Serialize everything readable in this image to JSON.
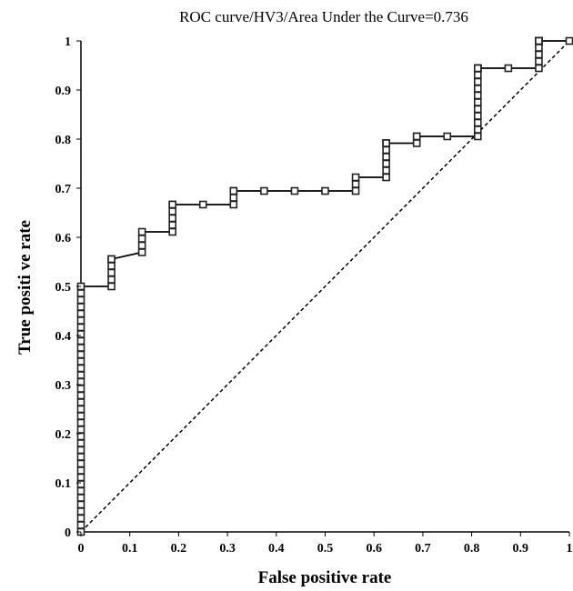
{
  "chart_data": {
    "type": "line",
    "title": "ROC curve/HV3/Area Under the Curve=0.736",
    "xlabel": "False positive rate",
    "ylabel": "True  positi ve rate",
    "xlim": [
      0,
      1
    ],
    "ylim": [
      0,
      1
    ],
    "x_ticks": [
      "0",
      "0.1",
      "0.2",
      "0.3",
      "0.4",
      "0.5",
      "0.6",
      "0.7",
      "0.8",
      "0.9",
      "1"
    ],
    "y_ticks": [
      "0",
      "0.1",
      "0.2",
      "0.3",
      "0.4",
      "0.5",
      "0.6",
      "0.7",
      "0.8",
      "0.9",
      "1"
    ],
    "grid": false,
    "legend": "none",
    "series": [
      {
        "style": "solid line with square markers",
        "x": [
          0,
          0,
          0,
          0,
          0,
          0,
          0,
          0,
          0,
          0,
          0,
          0,
          0,
          0,
          0,
          0,
          0,
          0,
          0,
          0,
          0,
          0,
          0,
          0,
          0,
          0,
          0,
          0,
          0,
          0,
          0,
          0,
          0,
          0,
          0,
          0,
          0,
          0.0625,
          0.0625,
          0.0625,
          0.0625,
          0.0625,
          0.0625,
          0.125,
          0.125,
          0.125,
          0.125,
          0.1875,
          0.1875,
          0.1875,
          0.1875,
          0.1875,
          0.1875,
          0.25,
          0.3125,
          0.3125,
          0.3125,
          0.3125,
          0.375,
          0.4375,
          0.5,
          0.5625,
          0.5625,
          0.5625,
          0.625,
          0.625,
          0.625,
          0.625,
          0.625,
          0.625,
          0.625,
          0.625,
          0.6875,
          0.6875,
          0.6875,
          0.75,
          0.8125,
          0.8125,
          0.8125,
          0.8125,
          0.8125,
          0.8125,
          0.8125,
          0.8125,
          0.8125,
          0.8125,
          0.8125,
          0.8125,
          0.8125,
          0.8125,
          0.8125,
          0.875,
          0.9375,
          0.9375,
          0.9375,
          0.9375,
          0.9375,
          0.9375,
          0.9375,
          0.9375,
          0.9375,
          1
        ],
        "y": [
          0,
          0.0139,
          0.0278,
          0.0417,
          0.0556,
          0.0694,
          0.0833,
          0.0972,
          0.1111,
          0.125,
          0.1389,
          0.1528,
          0.1667,
          0.1806,
          0.1944,
          0.2083,
          0.2222,
          0.2361,
          0.25,
          0.2639,
          0.2778,
          0.2917,
          0.3056,
          0.3194,
          0.3333,
          0.3472,
          0.3611,
          0.375,
          0.3889,
          0.4028,
          0.4167,
          0.4306,
          0.4444,
          0.4583,
          0.4722,
          0.4861,
          0.5,
          0.5,
          0.5139,
          0.5278,
          0.5417,
          0.5556,
          0.5556,
          0.5694,
          0.5833,
          0.5972,
          0.6111,
          0.6111,
          0.625,
          0.6389,
          0.6528,
          0.6667,
          0.6667,
          0.6667,
          0.6667,
          0.6806,
          0.6944,
          0.6944,
          0.6944,
          0.6944,
          0.6944,
          0.6944,
          0.7083,
          0.7222,
          0.7222,
          0.7361,
          0.75,
          0.7639,
          0.7778,
          0.7917,
          0.7917,
          0.7917,
          0.7917,
          0.8056,
          0.8056,
          0.8056,
          0.8056,
          0.8194,
          0.8333,
          0.8472,
          0.8611,
          0.875,
          0.8889,
          0.9028,
          0.9167,
          0.9306,
          0.9444,
          0.9444,
          0.9444,
          0.9444,
          0.9444,
          0.9444,
          0.9444,
          0.9583,
          0.9722,
          0.9861,
          1,
          1,
          1,
          1,
          1,
          1
        ]
      },
      {
        "style": "dashed diagonal reference line",
        "x": [
          0,
          1
        ],
        "y": [
          0,
          1
        ]
      }
    ]
  }
}
